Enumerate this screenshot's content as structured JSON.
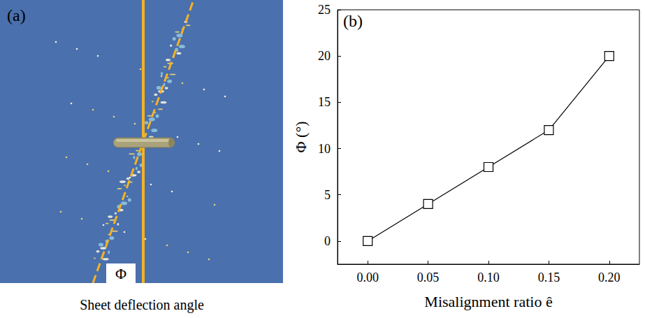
{
  "image_panel": {
    "letter": "(a)",
    "angle_label": "Φ",
    "caption": "Sheet deflection angle"
  },
  "chart_data": {
    "type": "line",
    "letter": "(b)",
    "x": [
      0.0,
      0.05,
      0.1,
      0.15,
      0.2
    ],
    "values": [
      0,
      4,
      8,
      12,
      20
    ],
    "color": "#000000",
    "marker": "square",
    "line_style": "solid",
    "xlabel": "Misalignment ratio ê",
    "ylabel": "Φ (°)",
    "xlim": [
      -0.025,
      0.225
    ],
    "xticks": [
      {
        "value": 0,
        "label": "0.00"
      },
      {
        "value": 0.05,
        "label": "0.05"
      },
      {
        "value": 0.1,
        "label": "0.10"
      },
      {
        "value": 0.15,
        "label": "0.15"
      },
      {
        "value": 0.2,
        "label": "0.20"
      }
    ],
    "ylim": [
      -2.5,
      25
    ],
    "yticks": [
      0,
      5,
      10,
      15,
      20,
      25
    ],
    "grid": false
  }
}
